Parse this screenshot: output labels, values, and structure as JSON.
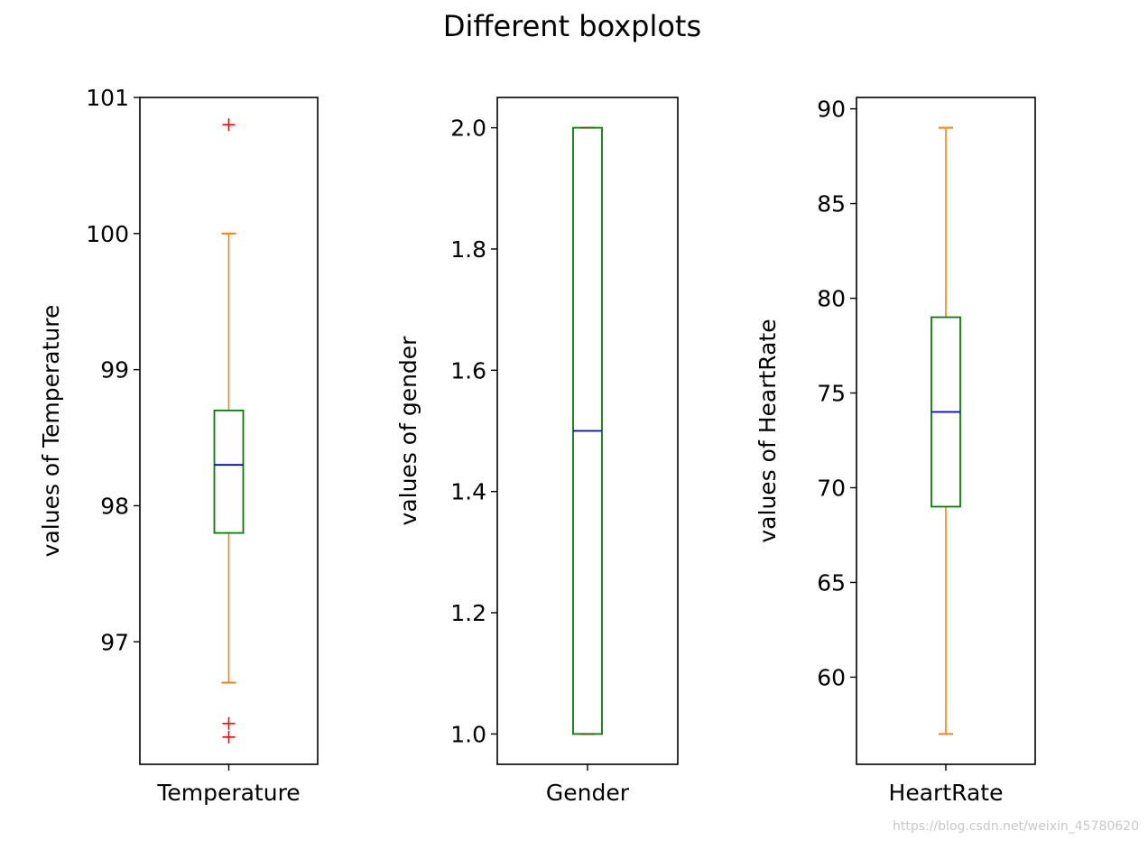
{
  "figure": {
    "suptitle": "Different boxplots",
    "watermark": "https://blog.csdn.net/weixin_45780620"
  },
  "colors": {
    "box": "#008000",
    "median": "#0000cc",
    "whisker": "#ff7f0e",
    "cap": "#ff7f0e",
    "flier": "#ff0000",
    "axes": "#000000"
  },
  "chart_data": [
    {
      "type": "boxplot",
      "category": "Temperature",
      "xlabel": "Temperature",
      "ylabel": "values of Temperature",
      "ylim": [
        96.1,
        101.0
      ],
      "yticks": [
        97,
        98,
        99,
        100,
        101
      ],
      "ytick_labels": [
        "97",
        "98",
        "99",
        "100",
        "101"
      ],
      "stats": {
        "whislo": 96.7,
        "q1": 97.8,
        "med": 98.3,
        "q3": 98.7,
        "whishi": 100.0
      },
      "fliers": [
        96.3,
        96.4,
        100.8
      ]
    },
    {
      "type": "boxplot",
      "category": "Gender",
      "xlabel": "Gender",
      "ylabel": "values of gender",
      "ylim": [
        0.95,
        2.05
      ],
      "yticks": [
        1.0,
        1.2,
        1.4,
        1.6,
        1.8,
        2.0
      ],
      "ytick_labels": [
        "1.0",
        "1.2",
        "1.4",
        "1.6",
        "1.8",
        "2.0"
      ],
      "stats": {
        "whislo": 1.0,
        "q1": 1.0,
        "med": 1.5,
        "q3": 2.0,
        "whishi": 2.0
      },
      "fliers": []
    },
    {
      "type": "boxplot",
      "category": "HeartRate",
      "xlabel": "HeartRate",
      "ylabel": "values of HeartRate",
      "ylim": [
        55.4,
        90.6
      ],
      "yticks": [
        60,
        65,
        70,
        75,
        80,
        85,
        90
      ],
      "ytick_labels": [
        "60",
        "65",
        "70",
        "75",
        "80",
        "85",
        "90"
      ],
      "stats": {
        "whislo": 57,
        "q1": 69,
        "med": 74,
        "q3": 79,
        "whishi": 89
      },
      "fliers": []
    }
  ]
}
